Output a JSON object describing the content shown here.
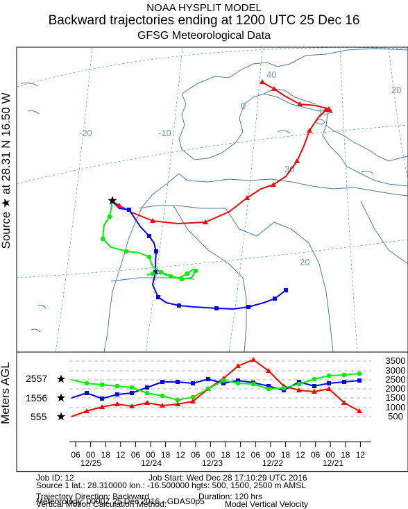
{
  "title": {
    "line1": "NOAA HYSPLIT MODEL",
    "line2": "Backward trajectories ending at 1200 UTC 25 Dec 16",
    "line3": "GFSG Meteorological Data"
  },
  "side_label": "Source ★ at   28.31 N   16.50 W",
  "map": {
    "lon_labels": [
      "-20",
      "-10",
      "0",
      "10",
      "20"
    ],
    "lat_labels": [
      "40",
      "30",
      "20"
    ],
    "source_marker": "star-icon"
  },
  "vertical_panel": {
    "ylabel": "Meters AGL",
    "left_heights": [
      "2557",
      "1556",
      "555"
    ],
    "right_ticks": [
      "3500",
      "3000",
      "2500",
      "2000",
      "1500",
      "1000",
      "500"
    ],
    "time_ticks": [
      "06",
      "00",
      "18",
      "12",
      "06",
      "00",
      "18",
      "12",
      "06",
      "00",
      "18",
      "12",
      "06",
      "00",
      "18",
      "12",
      "06",
      "00",
      "18",
      "12"
    ],
    "date_labels": [
      "12/25",
      "12/24",
      "12/23",
      "12/22",
      "12/21"
    ]
  },
  "info": {
    "job_id": "Job ID: 12",
    "job_start": "Job Start: Wed Dec 28 17:10:29 UTC 2016",
    "source": "Source 1 lat.: 28.310000  lon.: -16.500000  hgts: 500, 1500, 2500 m AMSL",
    "direction": "Trajectory Direction: Backward",
    "duration": "Duration: 120 hrs",
    "vertical_method": "Vertical Motion Calculation Method:",
    "vertical_value": "Model Vertical Velocity",
    "meteorology": "Meteorology: 0000Z 25 Dec 2016 - GDAS0p5"
  },
  "colors": {
    "red": "#ff0000",
    "blue": "#0000ff",
    "green": "#00ee00",
    "coast": "#4b79a6",
    "grid": "#6f97c2"
  }
}
